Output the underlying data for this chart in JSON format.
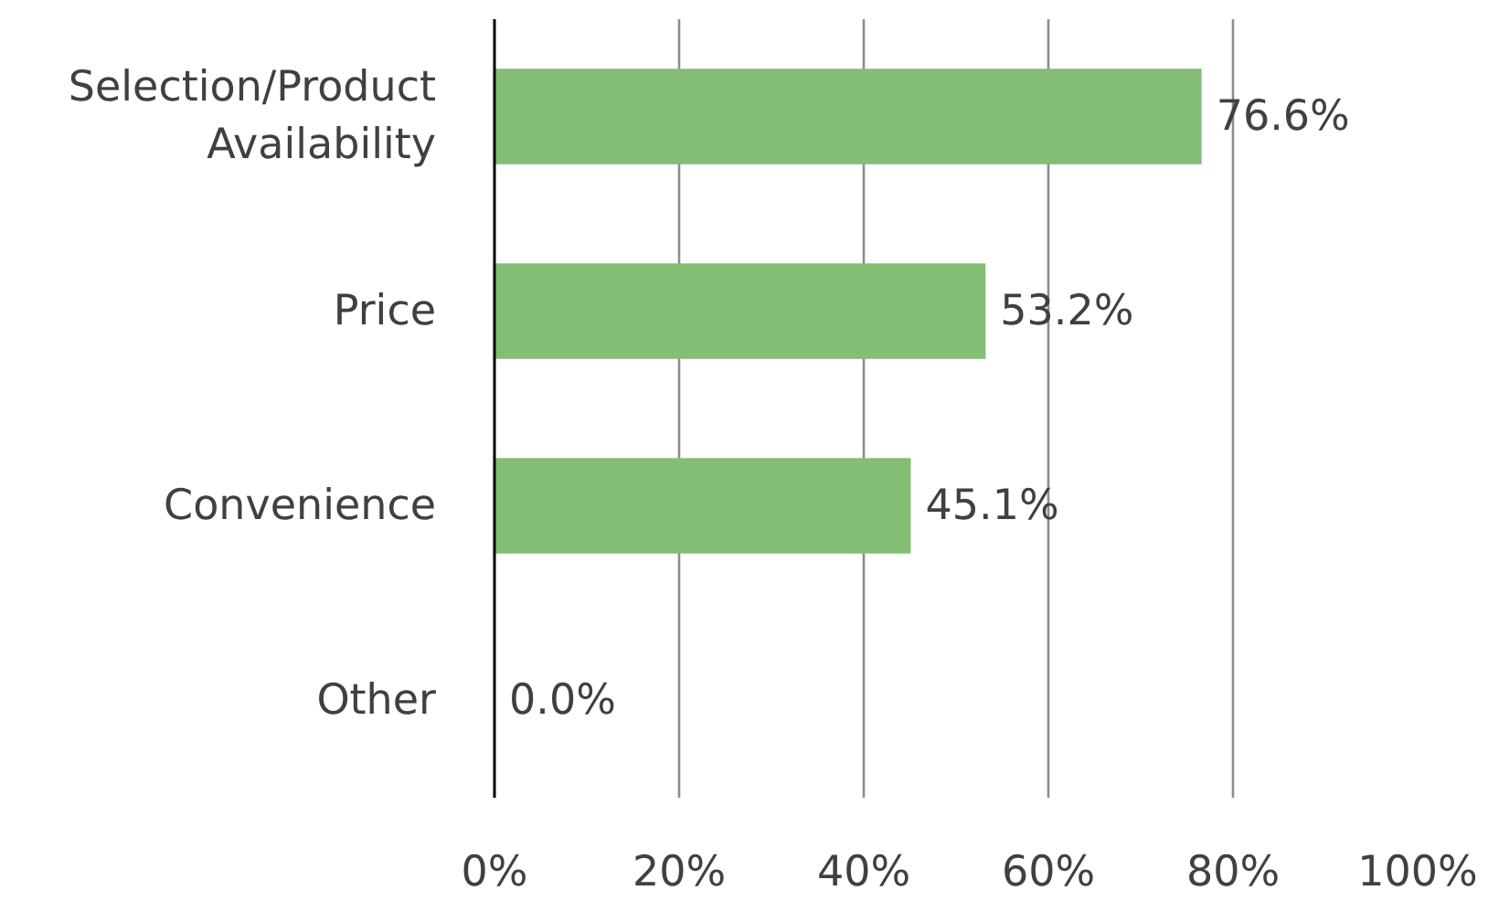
{
  "chart_data": {
    "type": "bar",
    "orientation": "horizontal",
    "categories": [
      "Selection/Product\nAvailability",
      "Price",
      "Convenience",
      "Other"
    ],
    "values": [
      76.6,
      53.2,
      45.1,
      0.0
    ],
    "value_labels": [
      "76.6%",
      "53.2%",
      "45.1%",
      "0.0%"
    ],
    "color": "#84bd74",
    "xlim": [
      0,
      100
    ],
    "xticks": [
      {
        "value": 0,
        "label": "0%"
      },
      {
        "value": 20,
        "label": "20%"
      },
      {
        "value": 40,
        "label": "40%"
      },
      {
        "value": 60,
        "label": "60%"
      },
      {
        "value": 80,
        "label": "80%"
      },
      {
        "value": 100,
        "label": "100%"
      }
    ],
    "grid": "x"
  }
}
